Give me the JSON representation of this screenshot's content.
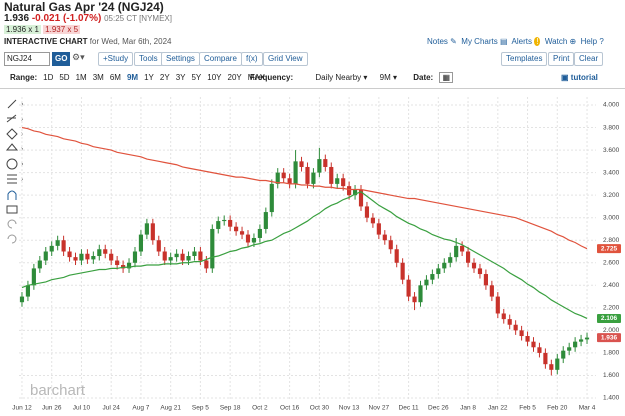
{
  "header": {
    "title": "Natural Gas Apr '24 (NGJ24)",
    "price": "1.936",
    "change": "-0.021 (-1.07%)",
    "time": "05:25 CT [NYMEX]",
    "bid": "1.936 x 1",
    "ask": "1.937 x 5",
    "chart_label": "INTERACTIVE CHART",
    "chart_date": "for Wed, Mar 6th, 2024",
    "links": [
      "Notes",
      "My Charts",
      "Alerts",
      "Watch",
      "Help"
    ]
  },
  "toolbar": {
    "symbol": "NGJ24",
    "go": "GO",
    "buttons": [
      "+Study",
      "Tools",
      "Settings",
      "Compare",
      "f(x)",
      "Grid View"
    ],
    "right_buttons": [
      "Templates",
      "Print",
      "Clear"
    ],
    "tutorial": "tutorial"
  },
  "range": {
    "label": "Range:",
    "options": [
      "1D",
      "5D",
      "1M",
      "3M",
      "6M",
      "9M",
      "1Y",
      "2Y",
      "3Y",
      "5Y",
      "10Y",
      "20Y",
      "MAX"
    ],
    "frequency_label": "Frequency:",
    "frequency": "Daily Nearby",
    "period": "9M",
    "date_label": "Date:"
  },
  "chart_data": {
    "type": "candlestick",
    "watermark": "barchart",
    "up_color": "#2e8b3a",
    "down_color": "#c8322b",
    "grid": true,
    "ylim": [
      1.4,
      4.0
    ],
    "yticks": [
      {
        "value": 1.4,
        "label": "1.400"
      },
      {
        "value": 1.6,
        "label": "1.600"
      },
      {
        "value": 1.8,
        "label": "1.800"
      },
      {
        "value": 2.0,
        "label": "2.000"
      },
      {
        "value": 2.2,
        "label": "2.200"
      },
      {
        "value": 2.4,
        "label": "2.400"
      },
      {
        "value": 2.6,
        "label": "2.600"
      },
      {
        "value": 2.8,
        "label": "2.800"
      },
      {
        "value": 3.0,
        "label": "3.000"
      },
      {
        "value": 3.2,
        "label": "3.200"
      },
      {
        "value": 3.4,
        "label": "3.400"
      },
      {
        "value": 3.6,
        "label": "3.600"
      },
      {
        "value": 3.8,
        "label": "3.800"
      },
      {
        "value": 4.0,
        "label": "4.000"
      }
    ],
    "categories": [
      "Jun 12",
      null,
      null,
      null,
      null,
      "Jun 26",
      null,
      null,
      null,
      null,
      "Jul 10",
      null,
      null,
      null,
      null,
      "Jul 24",
      null,
      null,
      null,
      null,
      "Aug 7",
      null,
      null,
      null,
      null,
      "Aug 21",
      null,
      null,
      null,
      null,
      "Sep 5",
      null,
      null,
      null,
      null,
      "Sep 18",
      null,
      null,
      null,
      null,
      "Oct 2",
      null,
      null,
      null,
      null,
      "Oct 16",
      null,
      null,
      null,
      null,
      "Oct 30",
      null,
      null,
      null,
      null,
      "Nov 13",
      null,
      null,
      null,
      null,
      "Nov 27",
      null,
      null,
      null,
      null,
      "Dec 11",
      null,
      null,
      null,
      null,
      "Dec 26",
      null,
      null,
      null,
      null,
      "Jan 8",
      null,
      null,
      null,
      null,
      "Jan 22",
      null,
      null,
      null,
      null,
      "Feb 5",
      null,
      null,
      null,
      null,
      "Feb 20",
      null,
      null,
      null,
      null,
      "Mar 4"
    ],
    "open": [
      2.25,
      2.3,
      2.4,
      2.55,
      2.62,
      2.7,
      2.75,
      2.8,
      2.7,
      2.65,
      2.62,
      2.68,
      2.63,
      2.66,
      2.72,
      2.68,
      2.62,
      2.58,
      2.55,
      2.6,
      2.7,
      2.85,
      2.95,
      2.8,
      2.7,
      2.62,
      2.65,
      2.68,
      2.62,
      2.66,
      2.7,
      2.62,
      2.55,
      2.9,
      2.97,
      2.98,
      2.92,
      2.88,
      2.85,
      2.78,
      2.82,
      2.9,
      3.05,
      3.3,
      3.4,
      3.35,
      3.3,
      3.5,
      3.45,
      3.3,
      3.4,
      3.52,
      3.45,
      3.3,
      3.35,
      3.28,
      3.2,
      3.25,
      3.1,
      3.0,
      2.95,
      2.85,
      2.8,
      2.72,
      2.6,
      2.45,
      2.3,
      2.25,
      2.4,
      2.45,
      2.5,
      2.55,
      2.6,
      2.65,
      2.75,
      2.7,
      2.6,
      2.55,
      2.5,
      2.4,
      2.3,
      2.15,
      2.1,
      2.05,
      2.0,
      1.95,
      1.9,
      1.85,
      1.8,
      1.7,
      1.65,
      1.75,
      1.82,
      1.85,
      1.9,
      1.92
    ],
    "high": [
      2.34,
      2.44,
      2.59,
      2.66,
      2.74,
      2.79,
      2.84,
      2.84,
      2.74,
      2.69,
      2.72,
      2.72,
      2.7,
      2.76,
      2.76,
      2.72,
      2.66,
      2.62,
      2.64,
      2.74,
      2.89,
      2.99,
      2.99,
      2.84,
      2.74,
      2.69,
      2.72,
      2.72,
      2.7,
      2.74,
      2.74,
      2.66,
      2.94,
      3.01,
      3.02,
      3.02,
      2.96,
      2.92,
      2.89,
      2.86,
      2.94,
      3.09,
      3.34,
      3.44,
      3.44,
      3.39,
      3.6,
      3.54,
      3.49,
      3.44,
      3.62,
      3.56,
      3.49,
      3.39,
      3.39,
      3.32,
      3.29,
      3.29,
      3.14,
      3.04,
      2.99,
      2.89,
      2.84,
      2.76,
      2.64,
      2.49,
      2.34,
      2.44,
      2.49,
      2.54,
      2.59,
      2.64,
      2.69,
      2.82,
      2.79,
      2.74,
      2.64,
      2.59,
      2.54,
      2.44,
      2.34,
      2.19,
      2.14,
      2.09,
      2.04,
      1.99,
      1.94,
      1.89,
      1.84,
      1.74,
      1.79,
      1.86,
      1.89,
      1.94,
      1.96,
      1.98
    ],
    "low": [
      2.21,
      2.26,
      2.36,
      2.51,
      2.58,
      2.66,
      2.71,
      2.66,
      2.61,
      2.58,
      2.58,
      2.59,
      2.59,
      2.62,
      2.64,
      2.58,
      2.54,
      2.51,
      2.51,
      2.56,
      2.66,
      2.81,
      2.76,
      2.66,
      2.58,
      2.58,
      2.61,
      2.58,
      2.58,
      2.62,
      2.58,
      2.51,
      2.51,
      2.86,
      2.93,
      2.88,
      2.84,
      2.81,
      2.74,
      2.74,
      2.78,
      2.86,
      3.01,
      3.26,
      3.31,
      3.26,
      3.26,
      3.41,
      3.26,
      3.26,
      3.36,
      3.41,
      3.26,
      3.26,
      3.24,
      3.16,
      3.16,
      3.06,
      2.96,
      2.91,
      2.81,
      2.76,
      2.68,
      2.56,
      2.41,
      2.26,
      2.18,
      2.21,
      2.36,
      2.41,
      2.46,
      2.51,
      2.56,
      2.61,
      2.66,
      2.56,
      2.51,
      2.46,
      2.36,
      2.26,
      2.11,
      2.06,
      2.01,
      1.96,
      1.91,
      1.86,
      1.81,
      1.76,
      1.66,
      1.6,
      1.61,
      1.71,
      1.78,
      1.81,
      1.86,
      1.88
    ],
    "close": [
      2.3,
      2.4,
      2.55,
      2.62,
      2.7,
      2.75,
      2.8,
      2.7,
      2.65,
      2.62,
      2.68,
      2.63,
      2.66,
      2.72,
      2.68,
      2.62,
      2.58,
      2.55,
      2.6,
      2.7,
      2.85,
      2.95,
      2.8,
      2.7,
      2.62,
      2.65,
      2.68,
      2.62,
      2.66,
      2.7,
      2.62,
      2.55,
      2.9,
      2.97,
      2.98,
      2.92,
      2.88,
      2.85,
      2.78,
      2.82,
      2.9,
      3.05,
      3.3,
      3.4,
      3.35,
      3.3,
      3.5,
      3.45,
      3.3,
      3.4,
      3.52,
      3.45,
      3.3,
      3.35,
      3.28,
      3.2,
      3.25,
      3.1,
      3.0,
      2.95,
      2.85,
      2.8,
      2.72,
      2.6,
      2.45,
      2.3,
      2.25,
      2.4,
      2.45,
      2.5,
      2.55,
      2.6,
      2.65,
      2.75,
      2.7,
      2.6,
      2.55,
      2.5,
      2.4,
      2.3,
      2.15,
      2.1,
      2.05,
      2.0,
      1.95,
      1.9,
      1.85,
      1.8,
      1.7,
      1.65,
      1.75,
      1.82,
      1.85,
      1.9,
      1.92,
      1.936
    ],
    "overlays": [
      {
        "color": "#e0533d",
        "values": [
          3.8,
          3.79,
          3.77,
          3.76,
          3.74,
          3.73,
          3.72,
          3.7,
          3.69,
          3.68,
          3.66,
          3.65,
          3.63,
          3.62,
          3.61,
          3.6,
          3.58,
          3.57,
          3.56,
          3.55,
          3.54,
          3.52,
          3.51,
          3.5,
          3.49,
          3.48,
          3.47,
          3.45,
          3.44,
          3.43,
          3.42,
          3.41,
          3.4,
          3.39,
          3.38,
          3.37,
          3.36,
          3.36,
          3.35,
          3.34,
          3.33,
          3.33,
          3.32,
          3.31,
          3.31,
          3.3,
          3.3,
          3.29,
          3.29,
          3.28,
          3.28,
          3.27,
          3.27,
          3.26,
          3.26,
          3.25,
          3.25,
          3.25,
          3.24,
          3.23,
          3.22,
          3.21,
          3.2,
          3.19,
          3.18,
          3.17,
          3.17,
          3.16,
          3.15,
          3.14,
          3.13,
          3.12,
          3.11,
          3.1,
          3.09,
          3.08,
          3.07,
          3.06,
          3.05,
          3.04,
          3.03,
          3.02,
          3.01,
          3.0,
          2.98,
          2.96,
          2.94,
          2.92,
          2.9,
          2.88,
          2.85,
          2.83,
          2.8,
          2.78,
          2.75,
          2.725
        ]
      },
      {
        "color": "#3aa040",
        "values": [
          2.38,
          2.4,
          2.41,
          2.42,
          2.43,
          2.45,
          2.46,
          2.47,
          2.49,
          2.5,
          2.51,
          2.52,
          2.53,
          2.54,
          2.54,
          2.55,
          2.55,
          2.56,
          2.56,
          2.57,
          2.57,
          2.58,
          2.58,
          2.58,
          2.59,
          2.59,
          2.59,
          2.6,
          2.6,
          2.61,
          2.61,
          2.63,
          2.65,
          2.66,
          2.68,
          2.7,
          2.71,
          2.73,
          2.74,
          2.76,
          2.77,
          2.79,
          2.8,
          2.83,
          2.86,
          2.88,
          2.91,
          2.94,
          2.97,
          3.01,
          3.04,
          3.08,
          3.11,
          3.13,
          3.16,
          3.18,
          3.21,
          3.23,
          3.19,
          3.15,
          3.11,
          3.08,
          3.05,
          3.01,
          2.98,
          2.95,
          2.93,
          2.9,
          2.88,
          2.85,
          2.83,
          2.81,
          2.8,
          2.78,
          2.76,
          2.73,
          2.7,
          2.67,
          2.64,
          2.61,
          2.58,
          2.55,
          2.51,
          2.48,
          2.45,
          2.41,
          2.38,
          2.34,
          2.31,
          2.27,
          2.24,
          2.21,
          2.18,
          2.15,
          2.13,
          2.106
        ]
      }
    ],
    "last_labels": [
      {
        "value": 2.725,
        "label": "2.725",
        "color": "#e0533d"
      },
      {
        "value": 2.106,
        "label": "2.106",
        "color": "#3aa040"
      },
      {
        "value": 1.936,
        "label": "1.936",
        "color": "#d9534f"
      }
    ]
  }
}
